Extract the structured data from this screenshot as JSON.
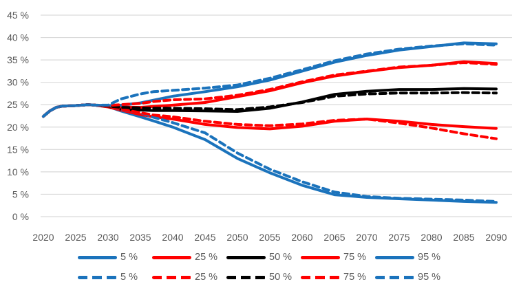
{
  "chart_data": {
    "type": "line",
    "title": "",
    "xlabel": "",
    "ylabel": "",
    "grid": true,
    "legend_position": "bottom",
    "ylim": [
      0,
      45
    ],
    "xlim": [
      2020,
      2090
    ],
    "y_tick_labels": [
      "0 %",
      "5 %",
      "10 %",
      "15 %",
      "20 %",
      "25 %",
      "30 %",
      "35 %",
      "40 %",
      "45 %"
    ],
    "y_tick_values": [
      0,
      5,
      10,
      15,
      20,
      25,
      30,
      35,
      40,
      45
    ],
    "x_tick_labels": [
      "2020",
      "2025",
      "2030",
      "2035",
      "2040",
      "2045",
      "2050",
      "2055",
      "2060",
      "2065",
      "2070",
      "2075",
      "2080",
      "2085",
      "2090"
    ],
    "x_tick_values": [
      2020,
      2025,
      2030,
      2035,
      2040,
      2045,
      2050,
      2055,
      2060,
      2065,
      2070,
      2075,
      2080,
      2085,
      2090
    ],
    "x": [
      2020,
      2021,
      2022,
      2023,
      2025,
      2027,
      2028,
      2030,
      2032,
      2035,
      2037,
      2040,
      2045,
      2050,
      2055,
      2060,
      2065,
      2070,
      2075,
      2080,
      2085,
      2090
    ],
    "colors": {
      "blue": "#1B73BC",
      "red": "#FF0000",
      "black": "#000000",
      "grid": "#D9D9D9",
      "axis_text": "#595959"
    },
    "series": [
      {
        "name": "5 %",
        "style": "solid",
        "color": "blue",
        "values": [
          22.4,
          23.6,
          24.4,
          24.7,
          24.8,
          25.0,
          24.9,
          24.6,
          23.6,
          22.3,
          21.4,
          20.0,
          17.2,
          13.0,
          9.8,
          7.0,
          4.9,
          4.3,
          4.0,
          3.7,
          3.4,
          3.2
        ]
      },
      {
        "name": "25 %",
        "style": "solid",
        "color": "red",
        "values": [
          22.4,
          23.6,
          24.4,
          24.7,
          24.8,
          25.0,
          24.9,
          24.5,
          23.8,
          22.8,
          22.3,
          21.8,
          20.6,
          19.9,
          19.6,
          20.2,
          21.3,
          21.8,
          21.3,
          20.6,
          20.1,
          19.7
        ]
      },
      {
        "name": "50 %",
        "style": "solid",
        "color": "black",
        "values": [
          22.4,
          23.6,
          24.4,
          24.7,
          24.8,
          25.0,
          24.9,
          24.6,
          24.0,
          23.8,
          23.7,
          23.7,
          23.6,
          23.5,
          24.2,
          25.6,
          27.3,
          28.0,
          28.4,
          28.4,
          28.6,
          28.5
        ]
      },
      {
        "name": "75 %",
        "style": "solid",
        "color": "red",
        "values": [
          22.4,
          23.6,
          24.4,
          24.7,
          24.8,
          25.0,
          24.9,
          24.7,
          24.5,
          24.4,
          24.6,
          24.9,
          25.5,
          26.8,
          28.1,
          29.9,
          31.4,
          32.4,
          33.3,
          33.8,
          34.6,
          34.2
        ]
      },
      {
        "name": "95 %",
        "style": "solid",
        "color": "blue",
        "values": [
          22.4,
          23.6,
          24.4,
          24.7,
          24.8,
          25.0,
          24.9,
          24.8,
          24.9,
          25.4,
          26.0,
          26.9,
          27.9,
          29.0,
          30.5,
          32.5,
          34.5,
          36.0,
          37.2,
          38.0,
          38.8,
          38.6
        ]
      },
      {
        "name": "5 %",
        "style": "dashed",
        "color": "blue",
        "values": [
          22.4,
          23.6,
          24.4,
          24.7,
          24.8,
          25.0,
          24.9,
          24.7,
          23.9,
          23.2,
          22.2,
          21.0,
          18.7,
          14.2,
          10.6,
          7.8,
          5.5,
          4.5,
          4.1,
          3.9,
          3.7,
          3.4
        ]
      },
      {
        "name": "25 %",
        "style": "dashed",
        "color": "red",
        "values": [
          22.4,
          23.6,
          24.4,
          24.7,
          24.8,
          25.0,
          24.9,
          24.6,
          24.0,
          23.2,
          22.7,
          22.3,
          21.3,
          20.6,
          20.3,
          20.7,
          21.5,
          21.8,
          20.9,
          19.8,
          18.5,
          17.4
        ]
      },
      {
        "name": "50 %",
        "style": "dashed",
        "color": "black",
        "values": [
          22.4,
          23.6,
          24.4,
          24.7,
          24.8,
          25.0,
          24.9,
          24.7,
          24.4,
          24.3,
          24.2,
          24.2,
          24.1,
          23.9,
          24.5,
          25.5,
          26.9,
          27.4,
          27.6,
          27.6,
          27.7,
          27.6
        ]
      },
      {
        "name": "75 %",
        "style": "dashed",
        "color": "red",
        "values": [
          22.4,
          23.6,
          24.4,
          24.7,
          24.8,
          25.0,
          24.9,
          24.8,
          25.0,
          25.3,
          25.7,
          26.1,
          26.3,
          27.1,
          28.4,
          30.1,
          31.6,
          32.5,
          33.4,
          33.8,
          34.4,
          34.0
        ]
      },
      {
        "name": "95 %",
        "style": "dashed",
        "color": "blue",
        "values": [
          22.4,
          23.6,
          24.4,
          24.7,
          24.8,
          25.0,
          24.9,
          24.9,
          26.3,
          27.4,
          27.9,
          28.2,
          28.7,
          29.4,
          30.9,
          32.8,
          34.8,
          36.3,
          37.4,
          38.1,
          38.6,
          38.3
        ]
      }
    ]
  }
}
